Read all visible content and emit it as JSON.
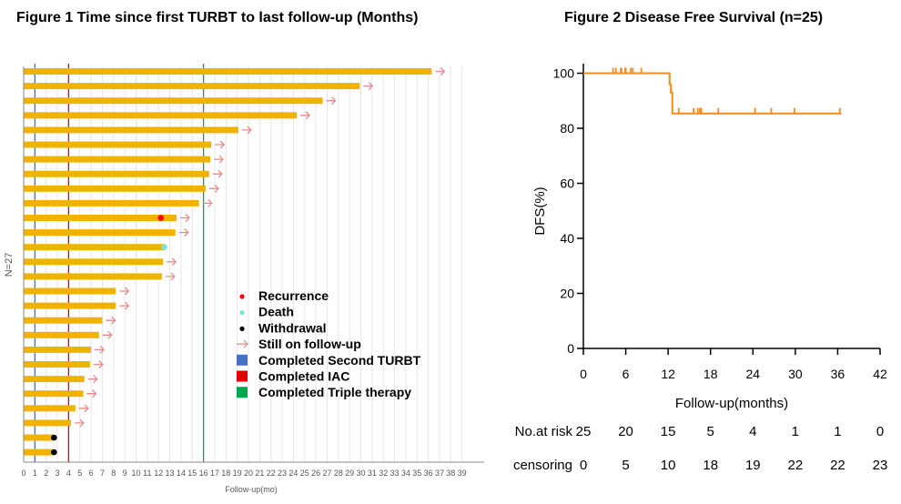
{
  "chart_data": [
    {
      "type": "bar",
      "orientation": "horizontal",
      "title": "Figure 1  Time since first TURBT to last follow-up (Months)",
      "xlabel": "Follow-up(mo)",
      "ylabel": "N=27",
      "xlim": [
        0,
        39
      ],
      "xticks": [
        0,
        1,
        2,
        3,
        4,
        5,
        6,
        7,
        8,
        9,
        10,
        11,
        12,
        13,
        14,
        15,
        16,
        17,
        18,
        19,
        20,
        21,
        22,
        23,
        24,
        25,
        26,
        27,
        28,
        29,
        30,
        31,
        32,
        33,
        34,
        35,
        36,
        37,
        38,
        39
      ],
      "bar_color": "#f0b400",
      "values": [
        36.3,
        29.9,
        26.6,
        24.3,
        19.1,
        16.7,
        16.6,
        16.5,
        16.2,
        15.6,
        13.6,
        13.5,
        12.6,
        12.4,
        12.3,
        8.2,
        8.2,
        7.0,
        6.7,
        6.0,
        5.9,
        5.4,
        5.3,
        4.6,
        4.2,
        2.6,
        2.6
      ],
      "still_on_followup": [
        true,
        true,
        true,
        true,
        true,
        true,
        true,
        true,
        true,
        true,
        true,
        true,
        false,
        true,
        true,
        true,
        true,
        true,
        true,
        true,
        true,
        true,
        true,
        true,
        true,
        false,
        false
      ],
      "events": [
        {
          "bar": 10,
          "x": 12.2,
          "type": "recurrence"
        },
        {
          "bar": 12,
          "x": 12.5,
          "type": "death"
        },
        {
          "bar": 25,
          "x": 2.7,
          "type": "withdrawal"
        },
        {
          "bar": 26,
          "x": 2.7,
          "type": "withdrawal"
        }
      ],
      "reference_lines": [
        {
          "x": 1,
          "color": "#4472c4",
          "label": "Completed Second TURBT"
        },
        {
          "x": 4,
          "color": "#e00000",
          "label": "Completed IAC"
        },
        {
          "x": 16,
          "color": "#00a650",
          "label": "Completed Triple therapy"
        }
      ],
      "legend": [
        {
          "label": "Recurrence",
          "symbol": "dot",
          "color": "#ff0000"
        },
        {
          "label": "Death",
          "symbol": "dot",
          "color": "#7fe0d8"
        },
        {
          "label": "Withdrawal",
          "symbol": "dot",
          "color": "#000000"
        },
        {
          "label": "Still on follow-up",
          "symbol": "arrow",
          "color": "#e88a8a"
        },
        {
          "label": "Completed Second TURBT",
          "symbol": "square",
          "color": "#4472c4"
        },
        {
          "label": "Completed IAC",
          "symbol": "square",
          "color": "#e00000"
        },
        {
          "label": "Completed Triple therapy",
          "symbol": "square",
          "color": "#00a650"
        }
      ],
      "arrow_color": "#e88a8a"
    },
    {
      "type": "line",
      "subtype": "kaplan-meier",
      "title": "Figure 2  Disease Free Survival (n=25)",
      "xlabel": "Follow-up(months)",
      "ylabel": "DFS(%)",
      "xlim": [
        0,
        42
      ],
      "ylim": [
        0,
        100
      ],
      "xticks": [
        0,
        6,
        12,
        18,
        24,
        30,
        36,
        42
      ],
      "yticks": [
        0,
        20,
        40,
        60,
        80,
        100
      ],
      "line_color": "#f28c1e",
      "steps": [
        [
          0,
          100
        ],
        [
          12.2,
          100
        ],
        [
          12.2,
          96
        ],
        [
          12.4,
          96
        ],
        [
          12.4,
          93
        ],
        [
          12.6,
          93
        ],
        [
          12.6,
          85.4
        ],
        [
          36.5,
          85.4
        ]
      ],
      "censor_marks": [
        [
          4.2,
          100
        ],
        [
          4.6,
          100
        ],
        [
          5.3,
          100
        ],
        [
          5.4,
          100
        ],
        [
          5.9,
          100
        ],
        [
          6.0,
          100
        ],
        [
          6.7,
          100
        ],
        [
          7.0,
          100
        ],
        [
          8.2,
          100
        ],
        [
          12.4,
          93
        ],
        [
          13.5,
          85.4
        ],
        [
          15.6,
          85.4
        ],
        [
          16.2,
          85.4
        ],
        [
          16.5,
          85.4
        ],
        [
          16.6,
          85.4
        ],
        [
          16.7,
          85.4
        ],
        [
          19.1,
          85.4
        ],
        [
          24.3,
          85.4
        ],
        [
          26.6,
          85.4
        ],
        [
          29.9,
          85.4
        ],
        [
          36.3,
          85.4
        ]
      ],
      "risk_table": {
        "rows": [
          {
            "label": "No.at risk",
            "values": [
              "25",
              "20",
              "15",
              "5",
              "4",
              "1",
              "1",
              "0"
            ]
          },
          {
            "label": "censoring",
            "values": [
              "0",
              "5",
              "10",
              "18",
              "19",
              "22",
              "22",
              "23"
            ]
          }
        ]
      }
    }
  ]
}
